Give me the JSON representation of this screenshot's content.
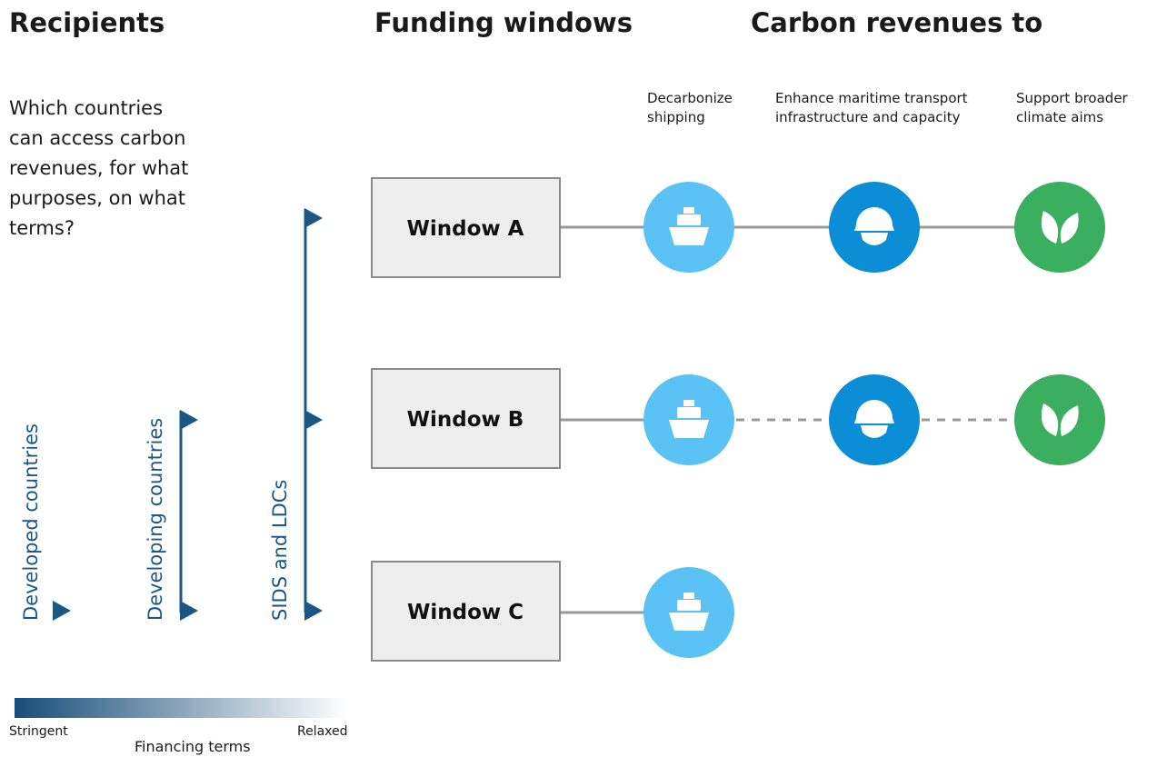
{
  "headers": [
    "Recipients",
    "Funding windows",
    "Carbon revenues to"
  ],
  "question": "Which countries can access carbon revenues, for what purposes, on what terms?",
  "recipients": [
    "Developed countries",
    "Developing countries",
    "SIDS and LDCs"
  ],
  "windows": [
    "Window A",
    "Window B",
    "Window C"
  ],
  "purposes": [
    "Decarbonize shipping",
    "Enhance maritime transport infrastructure and capacity",
    "Support broader climate aims"
  ],
  "financing": {
    "left": "Stringent",
    "title": "Financing terms",
    "right": "Relaxed"
  }
}
